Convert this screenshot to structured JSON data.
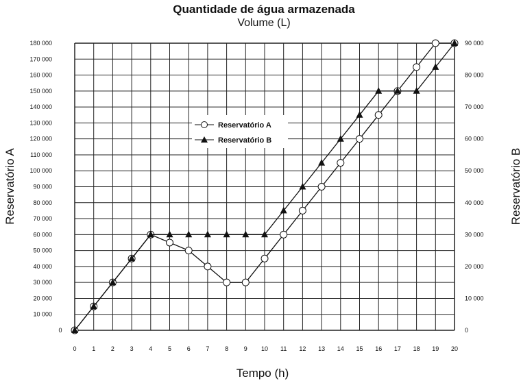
{
  "chart_data": {
    "type": "line",
    "title": "Quantidade de água armazenada",
    "subtitle": "Volume (L)",
    "xlabel": "Tempo (h)",
    "ylabel_left": "Reservatório A",
    "ylabel_right": "Reservatório B",
    "x": [
      0,
      1,
      2,
      3,
      4,
      5,
      6,
      7,
      8,
      9,
      10,
      11,
      12,
      13,
      14,
      15,
      16,
      17,
      18,
      19,
      20
    ],
    "x_tick_labels": [
      "0",
      "1",
      "2",
      "3",
      "4",
      "5",
      "6",
      "7",
      "8",
      "9",
      "10",
      "11",
      "12",
      "13",
      "14",
      "15",
      "16",
      "17",
      "18",
      "19",
      "20"
    ],
    "ylim_left": [
      0,
      180000
    ],
    "ylim_right": [
      0,
      90000
    ],
    "y_left_tick_labels": [
      "0",
      "10 000",
      "20 000",
      "30 000",
      "40 000",
      "50 000",
      "60 000",
      "70 000",
      "80 000",
      "90 000",
      "100 000",
      "110 000",
      "120 000",
      "130 000",
      "140 000",
      "150 000",
      "160 000",
      "170 000",
      "180 000"
    ],
    "y_right_tick_labels": [
      "0",
      "10 000",
      "20 000",
      "30 000",
      "40 000",
      "50 000",
      "60 000",
      "70 000",
      "80 000",
      "90 000"
    ],
    "grid": true,
    "legend_position": "upper-center",
    "series": [
      {
        "name": "Reservatório A",
        "axis": "left",
        "marker": "open-circle",
        "values": [
          0,
          15000,
          30000,
          45000,
          60000,
          55000,
          50000,
          40000,
          30000,
          30000,
          45000,
          60000,
          75000,
          90000,
          105000,
          120000,
          135000,
          150000,
          165000,
          180000,
          180000
        ]
      },
      {
        "name": "Reservatório B",
        "axis": "right",
        "marker": "filled-triangle",
        "values": [
          0,
          7500,
          15000,
          22500,
          30000,
          30000,
          30000,
          30000,
          30000,
          30000,
          30000,
          37500,
          45000,
          52500,
          60000,
          67500,
          75000,
          75000,
          75000,
          82500,
          90000
        ]
      }
    ]
  }
}
